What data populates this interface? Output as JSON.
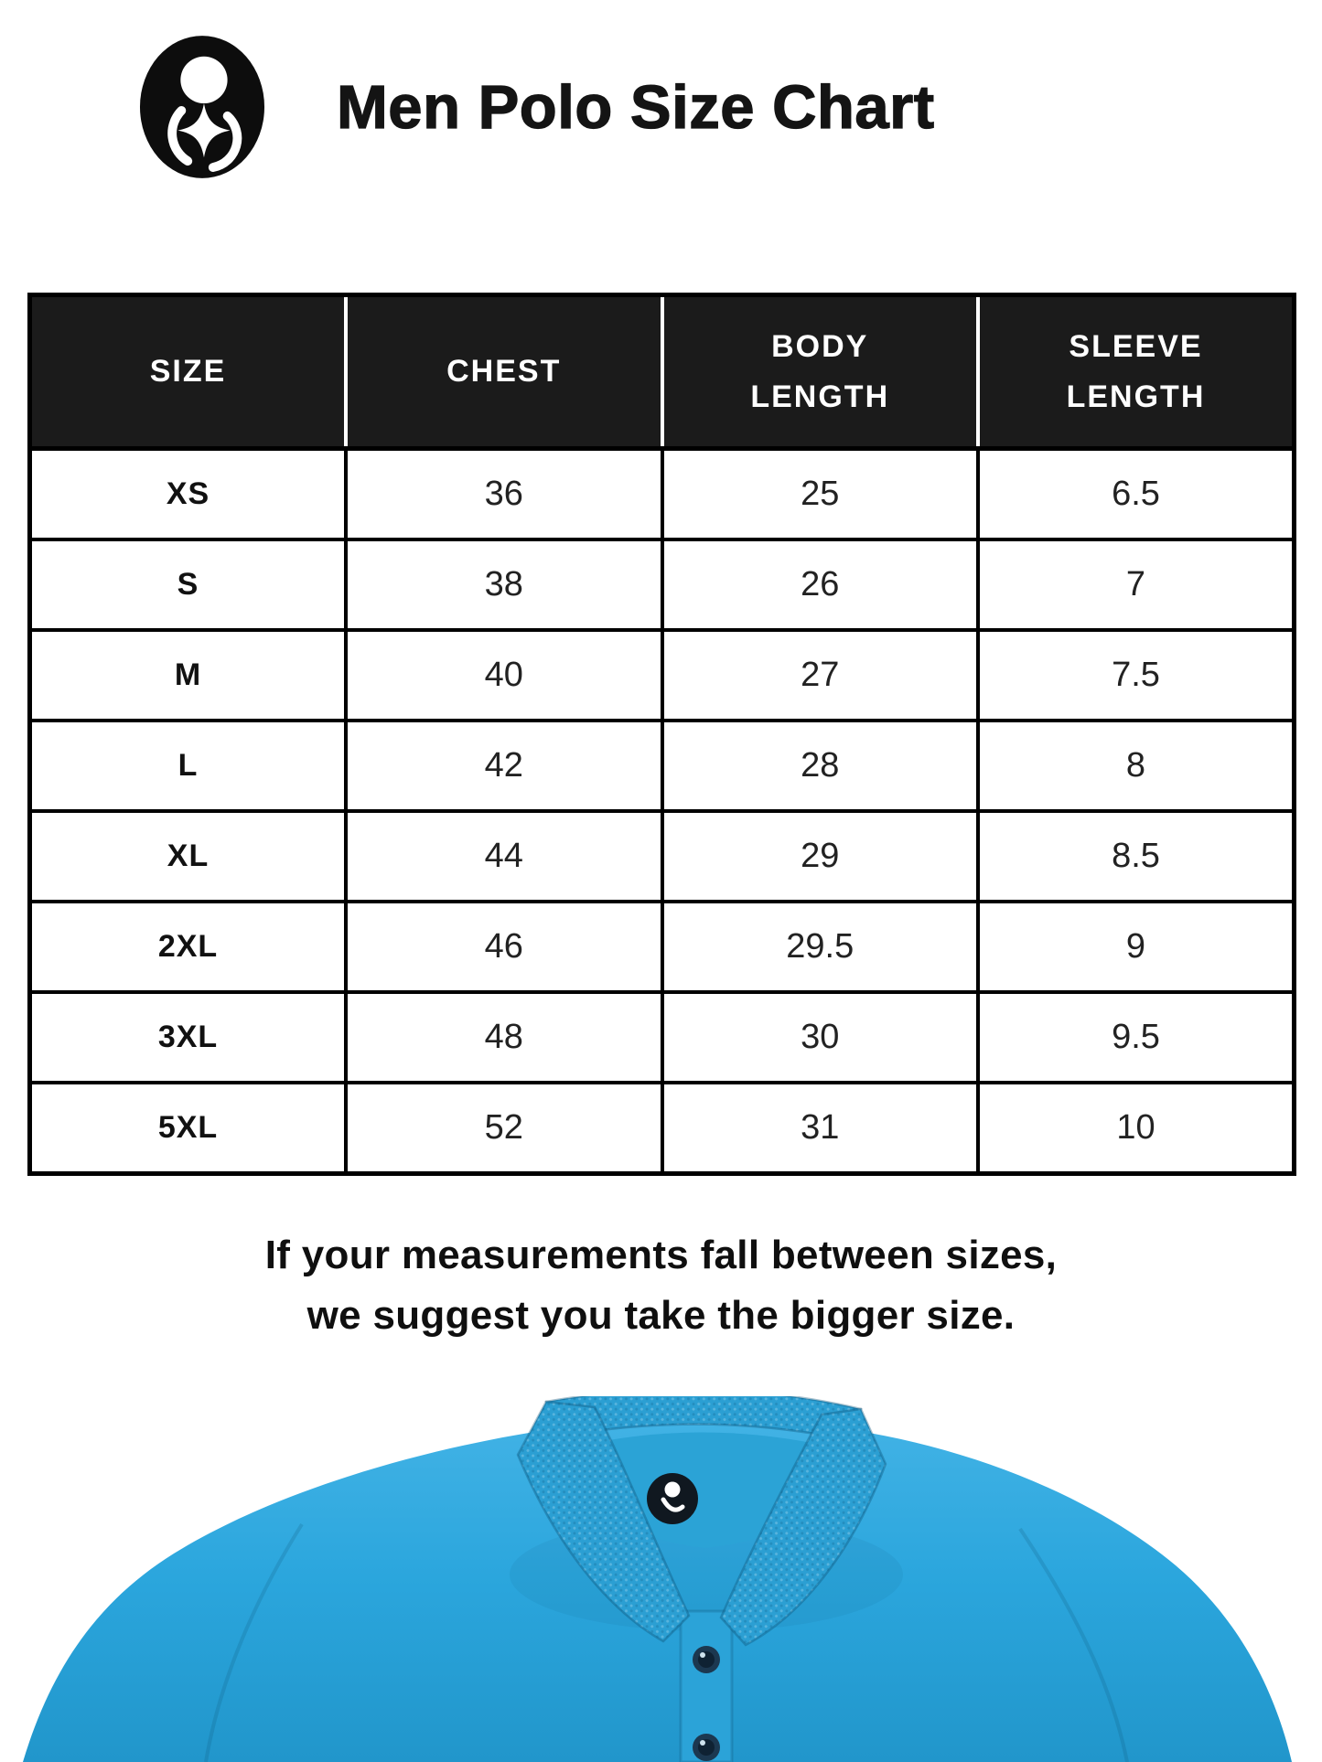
{
  "header": {
    "title": "Men Polo Size Chart",
    "logo": "brand-logo"
  },
  "table": {
    "columns": [
      "SIZE",
      "CHEST",
      "BODY LENGTH",
      "SLEEVE LENGTH"
    ],
    "rows": [
      [
        "XS",
        "36",
        "25",
        "6.5"
      ],
      [
        "S",
        "38",
        "26",
        "7"
      ],
      [
        "M",
        "40",
        "27",
        "7.5"
      ],
      [
        "L",
        "42",
        "28",
        "8"
      ],
      [
        "XL",
        "44",
        "29",
        "8.5"
      ],
      [
        "2XL",
        "46",
        "29.5",
        "9"
      ],
      [
        "3XL",
        "48",
        "30",
        "9.5"
      ],
      [
        "5XL",
        "52",
        "31",
        "10"
      ]
    ]
  },
  "note": {
    "line1": "If your measurements fall between sizes,",
    "line2": "we suggest you take the bigger size."
  },
  "colors": {
    "shirt_blue": "#2BA6DD",
    "shirt_blue_light": "#41B2E5",
    "shirt_blue_dark": "#2196CB",
    "collar_blue": "#2B9FD3",
    "button_navy": "#1C3850",
    "table_header_bg": "#1B1B1B",
    "text_dark": "#111111"
  }
}
